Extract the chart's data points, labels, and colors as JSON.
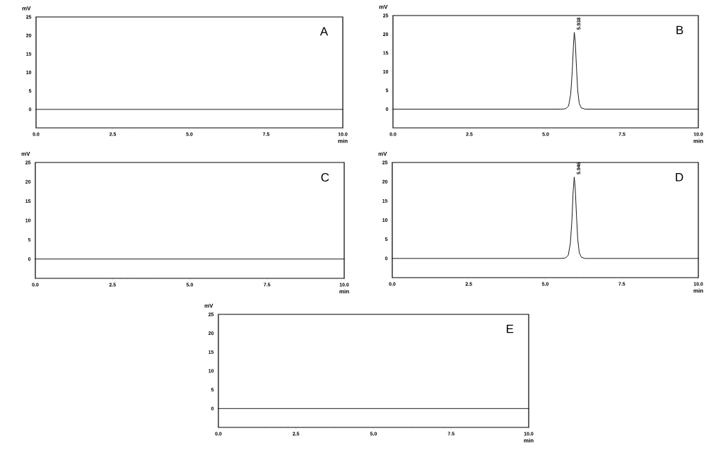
{
  "chart_data": [
    {
      "type": "line",
      "xlabel": "min",
      "ylabel": "mV",
      "annotations": [
        "A"
      ],
      "xlim": [
        0,
        10
      ],
      "ylim": [
        -5,
        25
      ],
      "xticks": [
        {
          "value": 0,
          "label": "0.0"
        },
        {
          "value": 2.5,
          "label": "2.5"
        },
        {
          "value": 5,
          "label": "5.0"
        },
        {
          "value": 7.5,
          "label": "7.5"
        },
        {
          "value": 10,
          "label": "10.0"
        }
      ],
      "yticks": [
        0,
        5,
        10,
        15,
        20,
        25
      ],
      "series": [
        {
          "color": "#000000",
          "x": [
            0,
            10
          ],
          "values": [
            0,
            0
          ]
        }
      ]
    },
    {
      "type": "line",
      "xlabel": "min",
      "ylabel": "mV",
      "annotations": [
        "B",
        {
          "text": "5.938",
          "x": 5.938,
          "y": 20.5
        }
      ],
      "xlim": [
        0,
        10
      ],
      "ylim": [
        -5,
        25
      ],
      "xticks": [
        {
          "value": 0,
          "label": "0.0"
        },
        {
          "value": 2.5,
          "label": "2.5"
        },
        {
          "value": 5,
          "label": "5.0"
        },
        {
          "value": 7.5,
          "label": "7.5"
        },
        {
          "value": 10,
          "label": "10.0"
        }
      ],
      "yticks": [
        0,
        5,
        10,
        15,
        20,
        25
      ],
      "series": [
        {
          "color": "#000000",
          "x": [
            0,
            5.5,
            5.65,
            5.75,
            5.82,
            5.87,
            5.91,
            5.938,
            5.97,
            6.01,
            6.05,
            6.1,
            6.17,
            6.3,
            10
          ],
          "values": [
            0,
            0,
            0.1,
            0.8,
            4,
            10,
            17,
            20.5,
            18,
            11,
            5,
            1.5,
            0.3,
            0,
            0
          ]
        }
      ]
    },
    {
      "type": "line",
      "xlabel": "min",
      "ylabel": "mV",
      "annotations": [
        "C"
      ],
      "xlim": [
        0,
        10
      ],
      "ylim": [
        -5,
        25
      ],
      "xticks": [
        {
          "value": 0,
          "label": "0.0"
        },
        {
          "value": 2.5,
          "label": "2.5"
        },
        {
          "value": 5,
          "label": "5.0"
        },
        {
          "value": 7.5,
          "label": "7.5"
        },
        {
          "value": 10,
          "label": "10.0"
        }
      ],
      "yticks": [
        0,
        5,
        10,
        15,
        20,
        25
      ],
      "series": [
        {
          "color": "#000000",
          "x": [
            0,
            10
          ],
          "values": [
            0,
            0
          ]
        }
      ]
    },
    {
      "type": "line",
      "xlabel": "min",
      "ylabel": "mV",
      "annotations": [
        "D",
        {
          "text": "5.946",
          "x": 5.946,
          "y": 21.2
        }
      ],
      "xlim": [
        0,
        10
      ],
      "ylim": [
        -5,
        25
      ],
      "xticks": [
        {
          "value": 0,
          "label": "0.0"
        },
        {
          "value": 2.5,
          "label": "2.5"
        },
        {
          "value": 5,
          "label": "5.0"
        },
        {
          "value": 7.5,
          "label": "7.5"
        },
        {
          "value": 10,
          "label": "10.0"
        }
      ],
      "yticks": [
        0,
        5,
        10,
        15,
        20,
        25
      ],
      "series": [
        {
          "color": "#000000",
          "x": [
            0,
            5.5,
            5.65,
            5.75,
            5.82,
            5.87,
            5.91,
            5.946,
            5.98,
            6.02,
            6.06,
            6.11,
            6.18,
            6.3,
            10
          ],
          "values": [
            0,
            0,
            0.1,
            0.8,
            4,
            10,
            17.5,
            21.2,
            18,
            11,
            5,
            1.5,
            0.3,
            0,
            0
          ]
        }
      ]
    },
    {
      "type": "line",
      "xlabel": "min",
      "ylabel": "mV",
      "annotations": [
        "E"
      ],
      "xlim": [
        0,
        10
      ],
      "ylim": [
        -5,
        25
      ],
      "xticks": [
        {
          "value": 0,
          "label": "0.0"
        },
        {
          "value": 2.5,
          "label": "2.5"
        },
        {
          "value": 5,
          "label": "5.0"
        },
        {
          "value": 7.5,
          "label": "7.5"
        },
        {
          "value": 10,
          "label": "10.0"
        }
      ],
      "yticks": [
        0,
        5,
        10,
        15,
        20,
        25
      ],
      "series": [
        {
          "color": "#000000",
          "x": [
            0,
            10
          ],
          "values": [
            0,
            0
          ]
        }
      ]
    }
  ]
}
